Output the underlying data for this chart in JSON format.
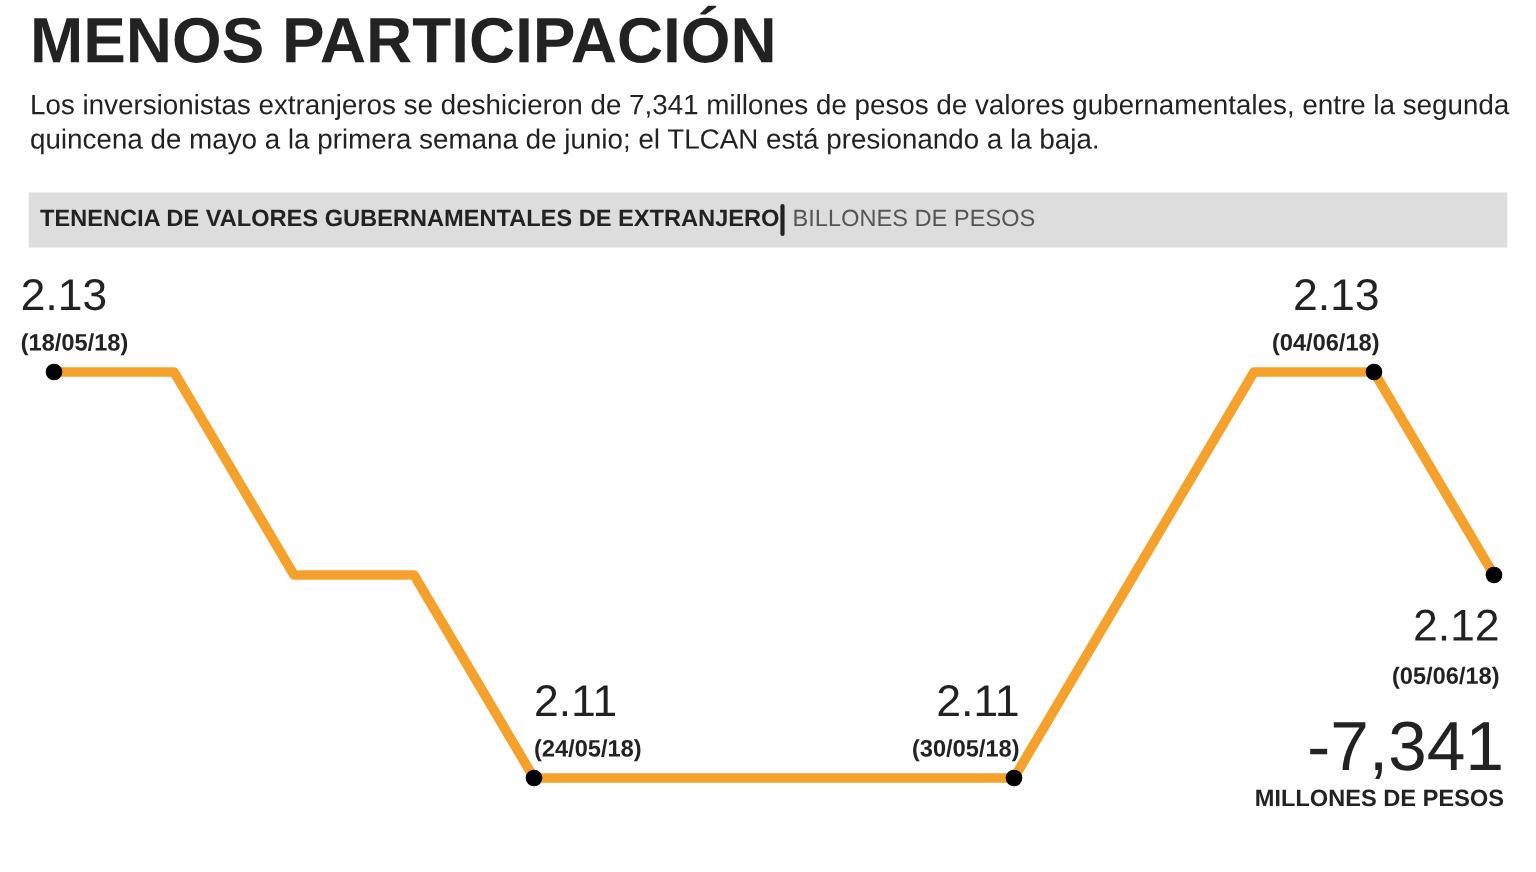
{
  "chart_data": {
    "type": "line",
    "title": "MENOS PARTICIPACIÓN",
    "subtitle": "Los inversionistas extranjeros se deshicieron de 7,341 millones de pesos de valores gubernamentales, entre la segunda quincena de mayo a la primera semana de junio; el TLCAN está presionando a la baja.",
    "categories": [
      null,
      null,
      null,
      null,
      null,
      null,
      null,
      null,
      null,
      null,
      null,
      null,
      null
    ],
    "series": [
      {
        "color": "#f5a12c",
        "values": [
          2.13,
          2.13,
          2.12,
          2.12,
          2.11,
          2.11,
          2.11,
          2.11,
          2.11,
          2.12,
          2.13,
          2.13,
          2.12
        ],
        "value_labels": [
          "2.13\n(18/05/18)",
          null,
          null,
          null,
          "2.11\n(24/05/18)",
          null,
          null,
          null,
          "2.11\n(30/05/18)",
          null,
          null,
          "2.13\n(04/06/18)",
          "2.12\n(05/06/18)"
        ]
      }
    ],
    "relative": false,
    "annotations": [
      "TENENCIA DE VALORES GUBERNAMENTALES DE EXTRANJERO",
      "BILLONES DE PESOS",
      "-7,341",
      "MILLONES DE PESOS"
    ]
  }
}
